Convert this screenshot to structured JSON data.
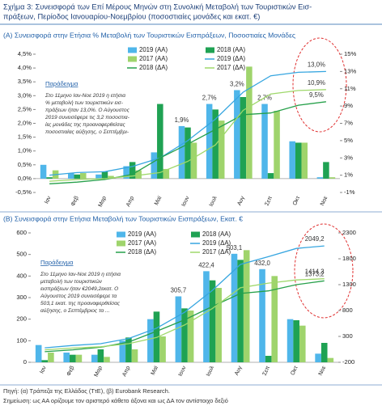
{
  "header": {
    "title": [
      "Σχήμα 3: Συνεισφορά των Επί Μέρους Μηνών στη Συνολική Μεταβολή των Τουριστικών Εισ-",
      "πράξεων, Περίοδος Ιανουαρίου-Νοεμβρίου (ποσοστιαίες μονάδες και εκατ. €)"
    ]
  },
  "chart_data": [
    {
      "type": "bar_line",
      "title": "(Α) Συνεισφορά στην Ετήσια % Μεταβολή των Τουριστικών Εισπράξεων, Ποσοστιαίες Μονάδες",
      "categories": [
        "Ιαν",
        "Φεβ",
        "Μαρ",
        "Απρ",
        "Μαϊ",
        "Ιουν",
        "Ιουλ",
        "Αυγ",
        "Σεπ",
        "Οκτ",
        "Νοε"
      ],
      "series": [
        {
          "name": "2019 (ΑΑ)",
          "type": "bar",
          "color": "#4fb6ea",
          "values": [
            0.5,
            0.2,
            0.15,
            0.45,
            0.95,
            1.9,
            2.7,
            3.2,
            2.7,
            1.35,
            0.05
          ],
          "value_labels": [
            null,
            null,
            null,
            null,
            null,
            "1,9%",
            "2,7%",
            "3,2%",
            "2,7%",
            null,
            null
          ]
        },
        {
          "name": "2018 (ΑΑ)",
          "type": "bar",
          "color": "#1fa253",
          "values": [
            0.05,
            0.15,
            0.25,
            0.6,
            2.7,
            1.85,
            2.5,
            2.95,
            0.2,
            1.3,
            0.6
          ]
        },
        {
          "name": "2017 (ΑΑ)",
          "type": "bar",
          "color": "#9fd46c",
          "values": [
            0.3,
            0.2,
            0.1,
            0.3,
            0.35,
            1.3,
            2.1,
            4.05,
            2.45,
            1.3,
            0.05
          ]
        },
        {
          "name": "2019 (ΔΑ)",
          "type": "line",
          "axis": "y2",
          "color": "#37a6e0",
          "values": [
            1.0,
            1.3,
            1.4,
            2.0,
            3.0,
            5.0,
            7.5,
            10.6,
            12.5,
            12.9,
            13.0
          ],
          "value_labels": [
            null,
            null,
            null,
            null,
            null,
            null,
            null,
            null,
            null,
            null,
            "13,0%"
          ]
        },
        {
          "name": "2018 (ΔΑ)",
          "type": "line",
          "axis": "y2",
          "color": "#26a04a",
          "values": [
            0.0,
            0.2,
            0.5,
            1.1,
            3.0,
            4.6,
            6.3,
            8.0,
            8.2,
            9.1,
            9.5
          ],
          "value_labels": [
            null,
            null,
            null,
            null,
            null,
            null,
            null,
            null,
            null,
            null,
            "9,5%"
          ]
        },
        {
          "name": "2017 (ΔΑ)",
          "type": "line",
          "axis": "y2",
          "color": "#9fd86b",
          "values": [
            0.3,
            0.5,
            0.6,
            0.9,
            1.3,
            2.6,
            4.5,
            8.5,
            10.4,
            10.8,
            10.9
          ],
          "value_labels": [
            null,
            null,
            null,
            null,
            null,
            null,
            null,
            null,
            null,
            null,
            "10,9%"
          ]
        }
      ],
      "ylim": [
        -0.5,
        4.5
      ],
      "yticks": [
        {
          "value": -0.5,
          "label": "-0,5%"
        },
        {
          "value": 0,
          "label": "0,0%"
        },
        {
          "value": 0.5,
          "label": "0,5%"
        },
        {
          "value": 1,
          "label": "1,0%"
        },
        {
          "value": 1.5,
          "label": "1,5%"
        },
        {
          "value": 2,
          "label": "2,0%"
        },
        {
          "value": 2.5,
          "label": "2,5%"
        },
        {
          "value": 3,
          "label": "3,0%"
        },
        {
          "value": 3.5,
          "label": "3,5%"
        },
        {
          "value": 4,
          "label": "4,0%"
        },
        {
          "value": 4.5,
          "label": "4,5%"
        }
      ],
      "y2lim": [
        -1,
        15
      ],
      "y2ticks": [
        {
          "value": -1,
          "label": "-1%"
        },
        {
          "value": 1,
          "label": "1%"
        },
        {
          "value": 3,
          "label": "3%"
        },
        {
          "value": 5,
          "label": "5%"
        },
        {
          "value": 7,
          "label": "7%"
        },
        {
          "value": 9,
          "label": "9%"
        },
        {
          "value": 11,
          "label": "11%"
        },
        {
          "value": 13,
          "label": "13%"
        },
        {
          "value": 15,
          "label": "15%"
        }
      ],
      "legend": "top",
      "annotation": {
        "title": "Παράδειγμα",
        "lines": [
          "Στο 11μηνο Ιαν-Νοε 2019 η ετήσια",
          "% μεταβολή των τουριστικών εισ-",
          "πράξεων ήταν 13,0%. Ο Αύγουστος",
          "2019 συνεισέφερε τις 3,2 ποσοστια-",
          "ίες μονάδες της προαναφερθείσας",
          "ποσοστιαίας αύξησης, ο Σεπτέμβρι-"
        ]
      }
    },
    {
      "type": "bar_line",
      "title": "(Β) Συνεισφορά στην Ετήσια Μεταβολή των Τουριστικών Εισπράξεων, Εκατ. €",
      "categories": [
        "Ιαν",
        "Φεβ",
        "Μαρ",
        "Απρ",
        "Μαϊ",
        "Ιουν",
        "Ιουλ",
        "Αυγ",
        "Σεπ",
        "Οκτ",
        "Νοε"
      ],
      "series": [
        {
          "name": "2019 (ΑΑ)",
          "type": "bar",
          "color": "#4fb6ea",
          "values": [
            80,
            45,
            35,
            100,
            200,
            305.7,
            422.4,
            503.1,
            432.0,
            200,
            40
          ],
          "value_labels": [
            null,
            null,
            null,
            null,
            null,
            "305,7",
            "422,4",
            "503,1",
            "432,0",
            null,
            null
          ]
        },
        {
          "name": "2018 (ΑΑ)",
          "type": "bar",
          "color": "#1fa253",
          "values": [
            10,
            35,
            60,
            115,
            235,
            250,
            380,
            475,
            30,
            195,
            90
          ]
        },
        {
          "name": "2017 (ΑΑ)",
          "type": "bar",
          "color": "#9fd46c",
          "values": [
            45,
            35,
            25,
            60,
            120,
            240,
            345,
            520,
            400,
            170,
            20
          ]
        },
        {
          "name": "2019 (ΔΑ)",
          "type": "line",
          "axis": "y2",
          "color": "#37a6e0",
          "values": [
            80,
            125,
            160,
            260,
            460,
            765,
            1190,
            1690,
            1840,
            2000,
            2049.2
          ],
          "value_labels": [
            null,
            null,
            null,
            null,
            null,
            null,
            null,
            null,
            null,
            null,
            "2049,2"
          ]
        },
        {
          "name": "2018 (ΔΑ)",
          "type": "line",
          "axis": "y2",
          "color": "#26a04a",
          "values": [
            5,
            40,
            90,
            190,
            400,
            620,
            880,
            1130,
            1180,
            1300,
            1373.2
          ],
          "value_labels": [
            null,
            null,
            null,
            null,
            null,
            null,
            null,
            null,
            null,
            null,
            "1373,2"
          ]
        },
        {
          "name": "2017 (ΔΑ)",
          "type": "line",
          "axis": "y2",
          "color": "#9fd86b",
          "values": [
            40,
            75,
            100,
            160,
            280,
            520,
            840,
            1240,
            1330,
            1390,
            1414.3
          ],
          "value_labels": [
            null,
            null,
            null,
            null,
            null,
            null,
            null,
            null,
            null,
            null,
            "1414,3"
          ]
        }
      ],
      "ylim": [
        0,
        600
      ],
      "yticks": [
        0,
        100,
        200,
        300,
        400,
        500,
        600
      ],
      "y2lim": [
        -200,
        2300
      ],
      "y2ticks": [
        -200,
        300,
        800,
        1300,
        1800,
        2300
      ],
      "legend": "top",
      "annotation": {
        "title": "Παράδειγμα",
        "lines": [
          "Στο 11μηνο Ιαν-Νοε 2019 η ετήσια",
          "μεταβολή των τουριστικών",
          "εισπράξεων ήταν €2049,2εκατ. Ο",
          "Αύγουστος 2019 συνεισέφερε τα",
          "503,1 εκατ. της προαναφερθείσας",
          "αύξησης, ο Σεπτέμβριος τα ..."
        ]
      }
    }
  ],
  "footer": {
    "source": "Πηγή: (α) Τράπεζα της Ελλάδος (ΤτΕ), (β) Eurobank Research.",
    "note": "Σημείωση: ως ΑΑ ορίζουμε τον αριστερό κάθετο άξονα και ως ΔΑ τον αντίστοιχο δεξιό"
  }
}
